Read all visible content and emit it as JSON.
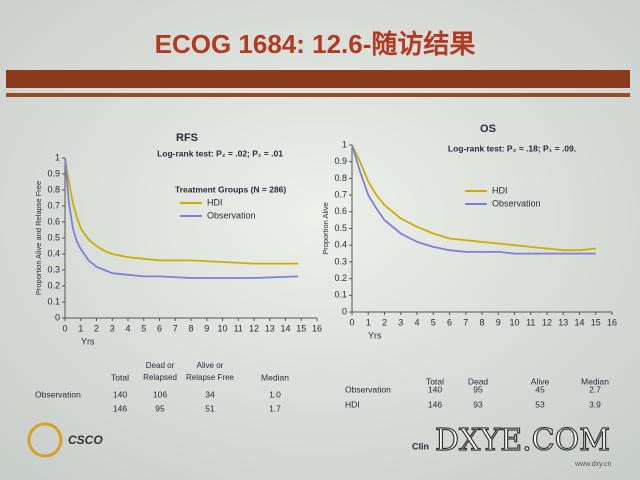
{
  "slide": {
    "title": "ECOG 1684: 12.6-随访结果",
    "logo": "CSCO",
    "footer": "Clin",
    "watermark": "DXYE.COM",
    "watermark_url": "www.dxy.cn"
  },
  "chart_data": [
    {
      "type": "line",
      "title": "RFS",
      "subtitle": "Log-rank test: P₂ = .02; P₁ = .01",
      "legend_title": "Treatment Groups (N = 286)",
      "xlabel": "Yrs",
      "ylabel": "Proportion Alive and Relapse Free",
      "xlim": [
        0,
        16
      ],
      "xticks": [
        0,
        1,
        2,
        3,
        4,
        5,
        6,
        7,
        8,
        9,
        10,
        11,
        12,
        13,
        14,
        15,
        16
      ],
      "ylim": [
        0,
        1
      ],
      "yticks": [
        0,
        0.1,
        0.2,
        0.3,
        0.4,
        0.5,
        0.6,
        0.7,
        0.8,
        0.9,
        1
      ],
      "x": [
        0,
        0.25,
        0.5,
        0.75,
        1,
        1.5,
        2,
        2.5,
        3,
        4,
        5,
        6,
        8,
        10,
        12,
        14.8
      ],
      "series": [
        {
          "name": "HDI",
          "color": "#c8b000",
          "values": [
            1,
            0.85,
            0.72,
            0.63,
            0.56,
            0.49,
            0.45,
            0.42,
            0.4,
            0.38,
            0.37,
            0.36,
            0.36,
            0.35,
            0.34,
            0.34
          ]
        },
        {
          "name": "Observation",
          "color": "#7f7fd6",
          "values": [
            1,
            0.72,
            0.56,
            0.48,
            0.43,
            0.36,
            0.32,
            0.3,
            0.28,
            0.27,
            0.26,
            0.26,
            0.25,
            0.25,
            0.25,
            0.26
          ]
        }
      ]
    },
    {
      "type": "line",
      "title": "OS",
      "subtitle": "Log-rank test: P₂ = .18; P₁ = .09.",
      "xlabel": "Yrs",
      "ylabel": "Proportion Alive",
      "xlim": [
        0,
        16
      ],
      "xticks": [
        0,
        1,
        2,
        3,
        4,
        5,
        6,
        7,
        8,
        9,
        10,
        11,
        12,
        13,
        14,
        15,
        16
      ],
      "ylim": [
        0,
        1
      ],
      "yticks": [
        0,
        0.1,
        0.2,
        0.3,
        0.4,
        0.5,
        0.6,
        0.7,
        0.8,
        0.9,
        1
      ],
      "x": [
        0,
        0.5,
        1,
        1.5,
        2,
        3,
        4,
        5,
        6,
        7,
        8,
        9,
        10,
        11,
        12,
        13,
        14,
        15
      ],
      "series": [
        {
          "name": "HDI",
          "color": "#c8b000",
          "values": [
            1,
            0.9,
            0.78,
            0.7,
            0.64,
            0.56,
            0.51,
            0.47,
            0.44,
            0.43,
            0.42,
            0.41,
            0.4,
            0.39,
            0.38,
            0.37,
            0.37,
            0.38
          ]
        },
        {
          "name": "Observation",
          "color": "#7f7fd6",
          "values": [
            1,
            0.84,
            0.7,
            0.62,
            0.55,
            0.47,
            0.42,
            0.39,
            0.37,
            0.36,
            0.36,
            0.36,
            0.35,
            0.35,
            0.35,
            0.35,
            0.35,
            0.35
          ]
        }
      ]
    }
  ],
  "tables": [
    {
      "header": [
        "Total",
        "Dead or Relapsed",
        "Alive or Relapse Free",
        "Median"
      ],
      "rows": [
        [
          "Observation",
          "140",
          "106",
          "34",
          "1.0"
        ],
        [
          null,
          "146",
          "95",
          "51",
          "1.7"
        ]
      ]
    },
    {
      "header": [
        "Total",
        "Dead",
        "Alive",
        "Median"
      ],
      "rows": [
        [
          "Observation",
          "140",
          "95",
          "45",
          "2.7"
        ],
        [
          "HDI",
          "146",
          "93",
          "53",
          "3.9"
        ]
      ]
    }
  ]
}
